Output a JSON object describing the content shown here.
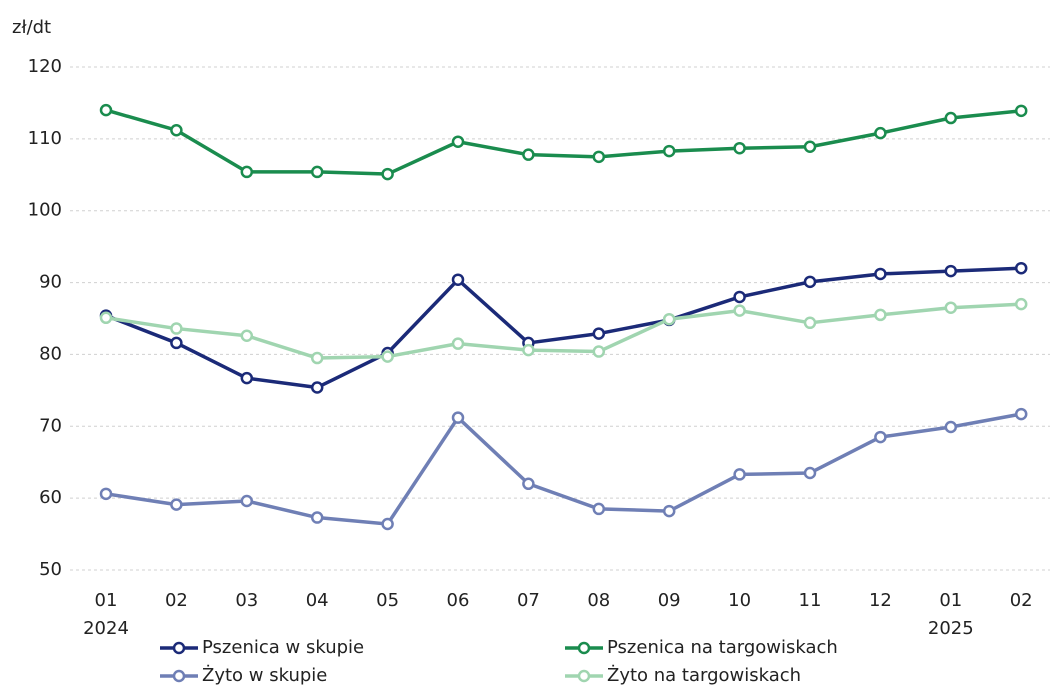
{
  "chart_data": {
    "type": "line",
    "y_unit_label": "zł/dt",
    "categories": [
      "01",
      "02",
      "03",
      "04",
      "05",
      "06",
      "07",
      "08",
      "09",
      "10",
      "11",
      "12",
      "01",
      "02"
    ],
    "x_sublabels": [
      "2024",
      null,
      null,
      null,
      null,
      null,
      null,
      null,
      null,
      null,
      null,
      null,
      "2025",
      null
    ],
    "ylim": [
      50,
      120
    ],
    "yticks": [
      50,
      60,
      70,
      80,
      90,
      100,
      110,
      120
    ],
    "grid": true,
    "legend": "bottom",
    "series": [
      {
        "name": "Pszenica w skupie",
        "color": "#1b2a78",
        "values": [
          85.4,
          81.6,
          76.7,
          75.4,
          80.2,
          90.4,
          81.6,
          82.9,
          84.8,
          88.0,
          90.1,
          91.2,
          91.6,
          92.0
        ]
      },
      {
        "name": "Pszenica na targowiskach",
        "color": "#1a8c4e",
        "values": [
          114.0,
          111.2,
          105.4,
          105.4,
          105.1,
          109.6,
          107.8,
          107.5,
          108.3,
          108.7,
          108.9,
          110.8,
          112.9,
          113.9
        ]
      },
      {
        "name": "Żyto w skupie",
        "color": "#6f7fb5",
        "values": [
          60.6,
          59.1,
          59.6,
          57.3,
          56.4,
          71.2,
          62.0,
          58.5,
          58.2,
          63.3,
          63.5,
          68.5,
          69.9,
          71.7
        ]
      },
      {
        "name": "Żyto na targowiskach",
        "color": "#a0d5b0",
        "values": [
          85.1,
          83.6,
          82.6,
          79.5,
          79.7,
          81.5,
          80.6,
          80.4,
          84.9,
          86.1,
          84.4,
          85.5,
          86.5,
          87.0
        ]
      }
    ]
  }
}
